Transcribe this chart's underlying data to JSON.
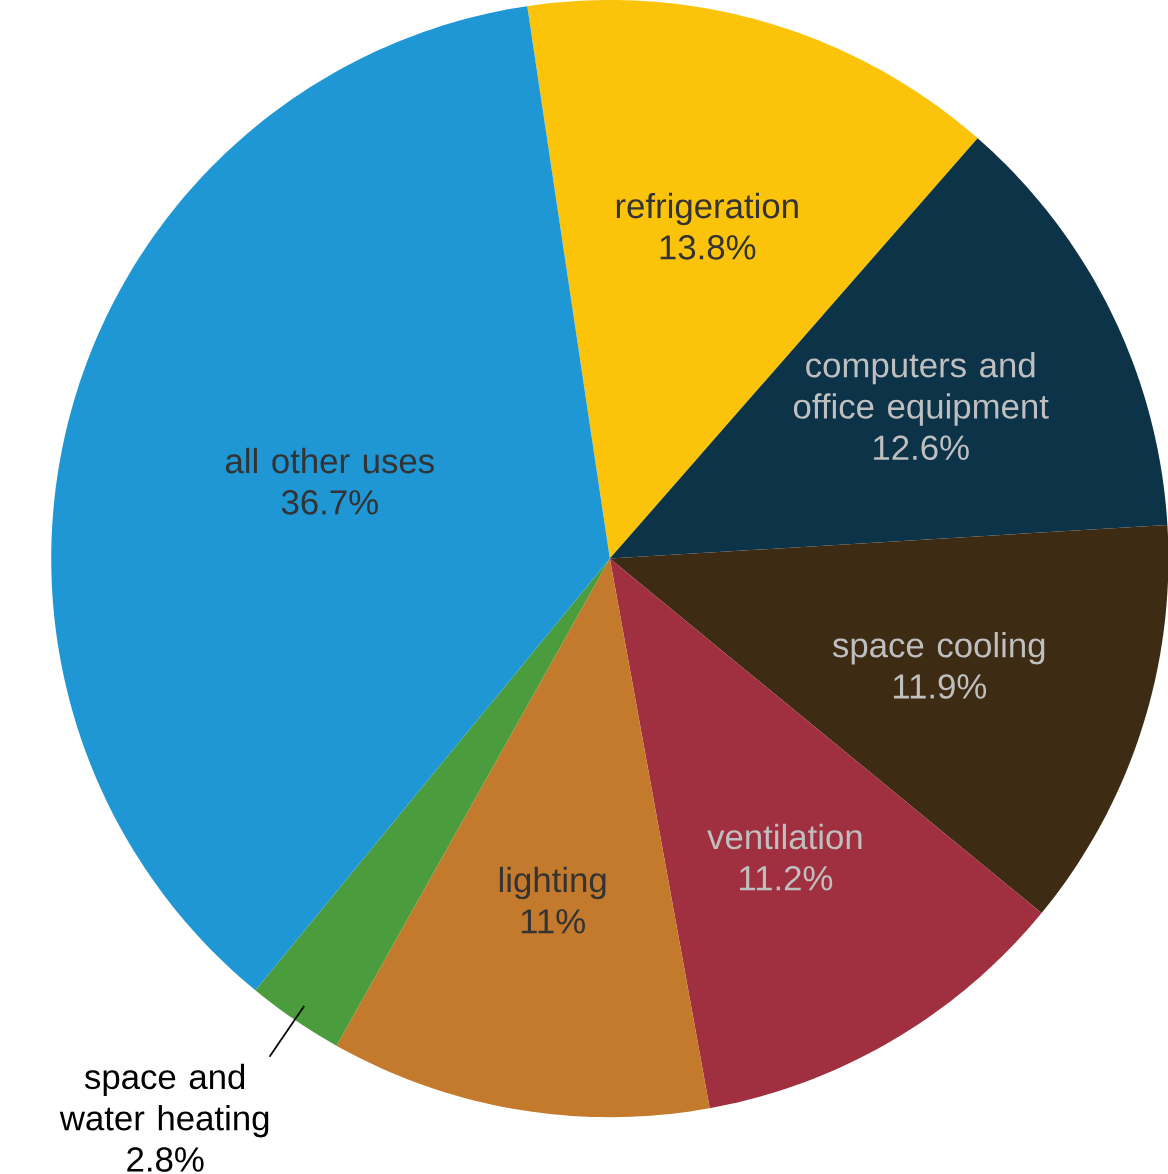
{
  "chart_data": {
    "type": "pie",
    "categories": [
      "refrigeration",
      "computers and office equipment",
      "space cooling",
      "ventilation",
      "lighting",
      "space and water heating",
      "all other uses"
    ],
    "values": [
      13.8,
      12.6,
      11.9,
      11.2,
      11,
      2.8,
      36.7
    ],
    "value_labels": [
      "13.8%",
      "12.6%",
      "11.9%",
      "11.2%",
      "11%",
      "2.8%",
      "36.7%"
    ],
    "colors": [
      "#fcc30b",
      "#0d3349",
      "#3d2b14",
      "#a0303f",
      "#c47a2c",
      "#4a9c3c",
      "#1f97d4"
    ]
  }
}
